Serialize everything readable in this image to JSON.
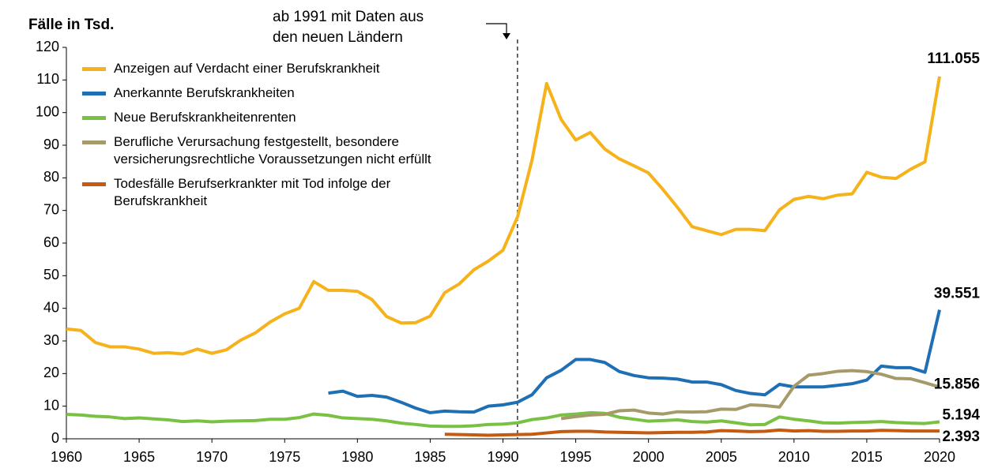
{
  "chart_data": {
    "type": "line",
    "y_label": "Fälle in Tsd.",
    "annotation": {
      "lines": [
        "ab 1991 mit Daten aus",
        "den neuen Ländern"
      ],
      "x": 1991
    },
    "x": [
      1960,
      1961,
      1962,
      1963,
      1964,
      1965,
      1966,
      1967,
      1968,
      1969,
      1970,
      1971,
      1972,
      1973,
      1974,
      1975,
      1976,
      1977,
      1978,
      1979,
      1980,
      1981,
      1982,
      1983,
      1984,
      1985,
      1986,
      1987,
      1988,
      1989,
      1990,
      1991,
      1992,
      1993,
      1994,
      1995,
      1996,
      1997,
      1998,
      1999,
      2000,
      2001,
      2002,
      2003,
      2004,
      2005,
      2006,
      2007,
      2008,
      2009,
      2010,
      2011,
      2012,
      2013,
      2014,
      2015,
      2016,
      2017,
      2018,
      2019,
      2020
    ],
    "xlim": [
      1960,
      2020
    ],
    "xticks": [
      1960,
      1965,
      1970,
      1975,
      1980,
      1985,
      1990,
      1995,
      2000,
      2005,
      2010,
      2015,
      2020
    ],
    "ylim": [
      0,
      120
    ],
    "yticks": [
      0,
      10,
      20,
      30,
      40,
      50,
      60,
      70,
      80,
      90,
      100,
      110,
      120
    ],
    "series": [
      {
        "name": "Anzeigen auf Verdacht einer Berufskrankheit",
        "color": "#f5b21a",
        "values": [
          33.7,
          33.2,
          29.5,
          28.2,
          28.2,
          27.5,
          26.2,
          26.4,
          26.0,
          27.5,
          26.2,
          27.3,
          30.3,
          32.5,
          35.8,
          38.3,
          40.0,
          48.2,
          45.5,
          45.5,
          45.2,
          42.7,
          37.5,
          35.5,
          35.6,
          37.6,
          44.8,
          47.5,
          51.8,
          54.5,
          57.8,
          68.0,
          85.5,
          108.9,
          97.9,
          91.6,
          93.9,
          88.8,
          85.8,
          83.7,
          81.5,
          76.4,
          70.9,
          65.0,
          63.8,
          62.6,
          64.2,
          64.2,
          63.8,
          70.2,
          73.4,
          74.3,
          73.6,
          74.7,
          75.1,
          81.7,
          80.2,
          79.8,
          82.6,
          84.9,
          111.055
        ],
        "value_labels": [
          null,
          null,
          null,
          null,
          null,
          null,
          null,
          null,
          null,
          null,
          null,
          null,
          null,
          null,
          null,
          null,
          null,
          null,
          null,
          null,
          null,
          null,
          null,
          null,
          null,
          null,
          null,
          null,
          null,
          null,
          null,
          null,
          null,
          null,
          null,
          null,
          null,
          null,
          null,
          null,
          null,
          null,
          null,
          null,
          null,
          null,
          null,
          null,
          null,
          null,
          null,
          null,
          null,
          null,
          null,
          null,
          null,
          null,
          null,
          null,
          "111.055"
        ]
      },
      {
        "name": "Anerkannte Berufskrankheiten",
        "color": "#1f6fb5",
        "values": [
          null,
          null,
          null,
          null,
          null,
          null,
          null,
          null,
          null,
          null,
          null,
          null,
          null,
          null,
          null,
          null,
          null,
          null,
          14.0,
          14.6,
          13.0,
          13.3,
          12.8,
          11.2,
          9.4,
          8.0,
          8.5,
          8.3,
          8.2,
          10.0,
          10.4,
          11.2,
          13.5,
          18.7,
          21.0,
          24.3,
          24.3,
          23.4,
          20.6,
          19.4,
          18.7,
          18.6,
          18.3,
          17.4,
          17.4,
          16.6,
          14.8,
          13.9,
          13.5,
          16.7,
          15.9,
          15.9,
          15.9,
          16.4,
          16.9,
          18.0,
          22.3,
          21.8,
          21.8,
          20.4,
          39.551
        ],
        "value_labels": [
          null,
          null,
          null,
          null,
          null,
          null,
          null,
          null,
          null,
          null,
          null,
          null,
          null,
          null,
          null,
          null,
          null,
          null,
          null,
          null,
          null,
          null,
          null,
          null,
          null,
          null,
          null,
          null,
          null,
          null,
          null,
          null,
          null,
          null,
          null,
          null,
          null,
          null,
          null,
          null,
          null,
          null,
          null,
          null,
          null,
          null,
          null,
          null,
          null,
          null,
          null,
          null,
          null,
          null,
          null,
          null,
          null,
          null,
          null,
          null,
          "39.551"
        ]
      },
      {
        "name": "Neue Berufskrankheitenrenten",
        "color": "#7ac143",
        "values": [
          7.5,
          7.3,
          6.9,
          6.7,
          6.2,
          6.4,
          6.1,
          5.8,
          5.3,
          5.5,
          5.2,
          5.4,
          5.5,
          5.6,
          6.0,
          6.0,
          6.5,
          7.6,
          7.2,
          6.4,
          6.2,
          6.0,
          5.5,
          4.8,
          4.4,
          3.9,
          3.8,
          3.8,
          4.0,
          4.4,
          4.5,
          4.9,
          5.9,
          6.4,
          7.3,
          7.6,
          8.0,
          7.8,
          6.6,
          6.0,
          5.4,
          5.6,
          5.8,
          5.3,
          5.1,
          5.5,
          4.9,
          4.3,
          4.4,
          6.7,
          6.0,
          5.5,
          4.9,
          4.8,
          5.0,
          5.1,
          5.3,
          5.0,
          4.8,
          4.7,
          5.194
        ],
        "value_labels": [
          null,
          null,
          null,
          null,
          null,
          null,
          null,
          null,
          null,
          null,
          null,
          null,
          null,
          null,
          null,
          null,
          null,
          null,
          null,
          null,
          null,
          null,
          null,
          null,
          null,
          null,
          null,
          null,
          null,
          null,
          null,
          null,
          null,
          null,
          null,
          null,
          null,
          null,
          null,
          null,
          null,
          null,
          null,
          null,
          null,
          null,
          null,
          null,
          null,
          null,
          null,
          null,
          null,
          null,
          null,
          null,
          null,
          null,
          null,
          null,
          "5.194"
        ]
      },
      {
        "name": "Berufliche Verursachung festgestellt, besondere versicherungsrechtliche Voraussetzungen nicht erfüllt",
        "color": "#a69a6a",
        "values": [
          null,
          null,
          null,
          null,
          null,
          null,
          null,
          null,
          null,
          null,
          null,
          null,
          null,
          null,
          null,
          null,
          null,
          null,
          null,
          null,
          null,
          null,
          null,
          null,
          null,
          null,
          null,
          null,
          null,
          null,
          null,
          null,
          null,
          null,
          6.2,
          6.8,
          7.3,
          7.5,
          8.6,
          8.8,
          7.9,
          7.6,
          8.3,
          8.2,
          8.3,
          9.1,
          9.0,
          10.4,
          10.2,
          9.7,
          16.1,
          19.5,
          20.0,
          20.7,
          20.9,
          20.6,
          19.8,
          18.5,
          18.4,
          17.2,
          15.856
        ],
        "value_labels": [
          null,
          null,
          null,
          null,
          null,
          null,
          null,
          null,
          null,
          null,
          null,
          null,
          null,
          null,
          null,
          null,
          null,
          null,
          null,
          null,
          null,
          null,
          null,
          null,
          null,
          null,
          null,
          null,
          null,
          null,
          null,
          null,
          null,
          null,
          null,
          null,
          null,
          null,
          null,
          null,
          null,
          null,
          null,
          null,
          null,
          null,
          null,
          null,
          null,
          null,
          null,
          null,
          null,
          null,
          null,
          null,
          null,
          null,
          null,
          null,
          "15.856"
        ]
      },
      {
        "name": "Todesfälle Berufserkrankter mit Tod infolge der Berufskrankheit",
        "color": "#c55a11",
        "values": [
          null,
          null,
          null,
          null,
          null,
          null,
          null,
          null,
          null,
          null,
          null,
          null,
          null,
          null,
          null,
          null,
          null,
          null,
          null,
          null,
          null,
          null,
          null,
          null,
          null,
          null,
          1.4,
          1.3,
          1.2,
          1.1,
          1.2,
          1.3,
          1.4,
          1.8,
          2.2,
          2.3,
          2.3,
          2.1,
          2.0,
          1.9,
          1.8,
          1.9,
          2.0,
          2.0,
          2.1,
          2.5,
          2.4,
          2.2,
          2.3,
          2.7,
          2.4,
          2.5,
          2.3,
          2.3,
          2.4,
          2.4,
          2.6,
          2.5,
          2.4,
          2.4,
          2.393
        ],
        "value_labels": [
          null,
          null,
          null,
          null,
          null,
          null,
          null,
          null,
          null,
          null,
          null,
          null,
          null,
          null,
          null,
          null,
          null,
          null,
          null,
          null,
          null,
          null,
          null,
          null,
          null,
          null,
          null,
          null,
          null,
          null,
          null,
          null,
          null,
          null,
          null,
          null,
          null,
          null,
          null,
          null,
          null,
          null,
          null,
          null,
          null,
          null,
          null,
          null,
          null,
          null,
          null,
          null,
          null,
          null,
          null,
          null,
          null,
          null,
          null,
          null,
          "2.393"
        ]
      }
    ]
  }
}
